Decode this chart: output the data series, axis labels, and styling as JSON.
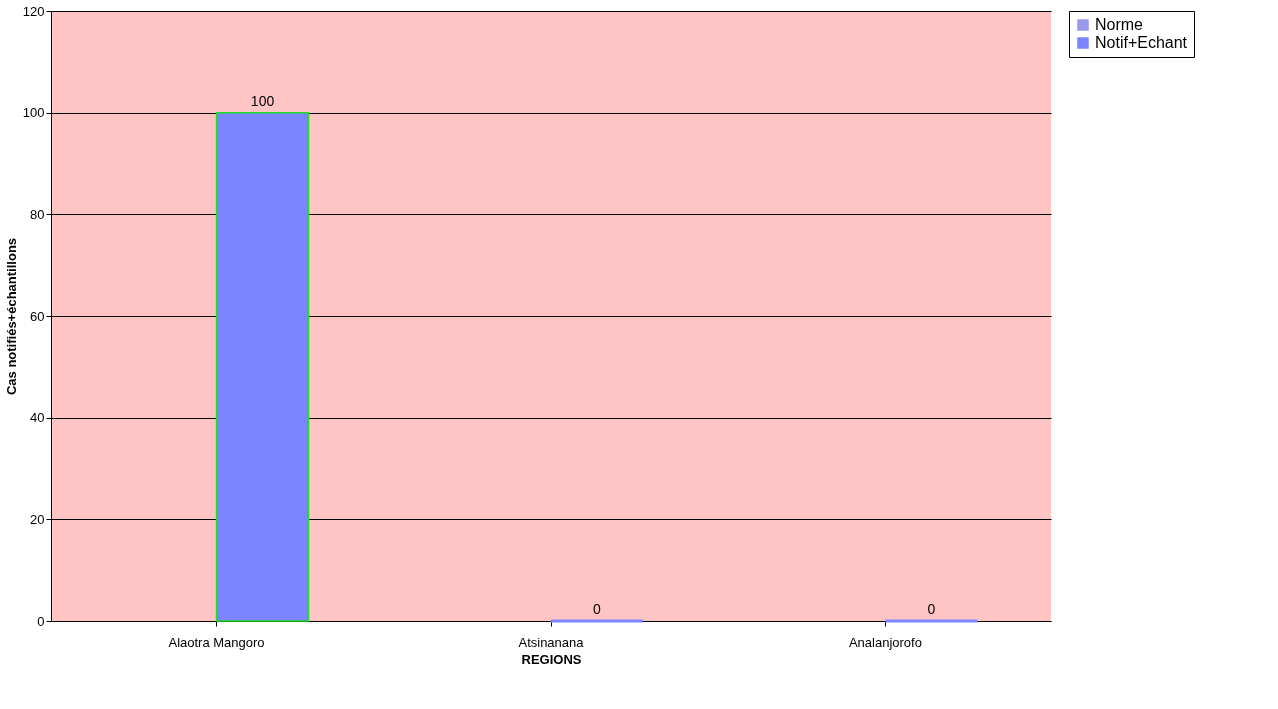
{
  "chart_data": {
    "type": "bar",
    "xlabel": "REGIONS",
    "ylabel": "Cas notifiés+échantillons",
    "categories": [
      "Alaotra Mangoro",
      "Atsinanana",
      "Analanjorofo"
    ],
    "series": [
      {
        "name": "Norme",
        "color": "#9999ee",
        "values": [
          null,
          null,
          null
        ]
      },
      {
        "name": "Notif+Echant",
        "color": "#7a85ff",
        "values": [
          100,
          0,
          0
        ]
      }
    ],
    "ylim": [
      0,
      120
    ],
    "yticks": [
      0,
      20,
      40,
      60,
      80,
      100,
      120
    ],
    "grid": "y",
    "legend": "right",
    "data_labels": true
  }
}
